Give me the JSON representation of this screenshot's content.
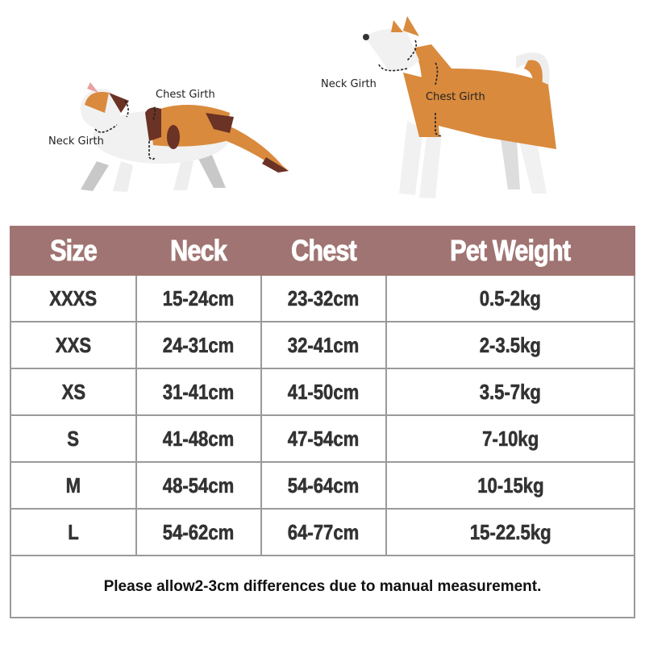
{
  "illustration": {
    "cat": {
      "neck_label": "Neck  Girth",
      "chest_label": "Chest Girth"
    },
    "dog": {
      "neck_label": "Neck  Girth",
      "chest_label": "Chest Girth"
    },
    "colors": {
      "orange": "#d98a3d",
      "brown": "#6b3226",
      "white": "#f1f1f1",
      "gray": "#c8c8c8"
    }
  },
  "table": {
    "header_color": "#a07472",
    "columns": [
      "Size",
      "Neck",
      "Chest",
      "Pet Weight"
    ],
    "rows": [
      [
        "XXXS",
        "15-24cm",
        "23-32cm",
        "0.5-2kg"
      ],
      [
        "XXS",
        "24-31cm",
        "32-41cm",
        "2-3.5kg"
      ],
      [
        "XS",
        "31-41cm",
        "41-50cm",
        "3.5-7kg"
      ],
      [
        "S",
        "41-48cm",
        "47-54cm",
        "7-10kg"
      ],
      [
        "M",
        "48-54cm",
        "54-64cm",
        "10-15kg"
      ],
      [
        "L",
        "54-62cm",
        "64-77cm",
        "15-22.5kg"
      ]
    ],
    "note": "Please allow2-3cm differences due to manual measurement."
  }
}
